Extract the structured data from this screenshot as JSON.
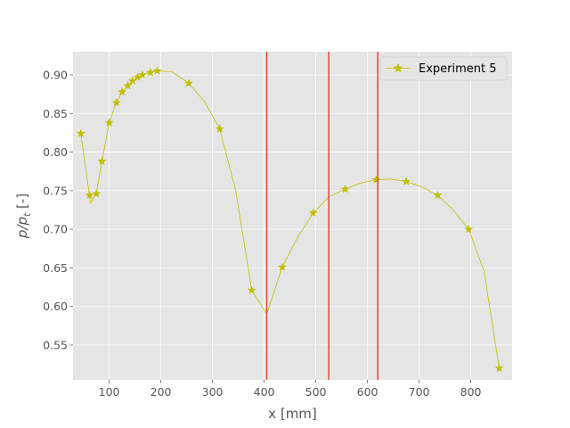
{
  "chart_data": {
    "type": "line",
    "xlabel": "x [mm]",
    "ylabel": "p/p",
    "ylabel_sub": "t",
    "ylabel_unit": " [-]",
    "xlim": [
      30,
      880
    ],
    "ylim": [
      0.505,
      0.93
    ],
    "xticks": [
      100,
      200,
      300,
      400,
      500,
      600,
      700,
      800
    ],
    "yticks": [
      0.55,
      0.6,
      0.65,
      0.7,
      0.75,
      0.8,
      0.85,
      0.9
    ],
    "grid": true,
    "legend_position": "top-right",
    "series": [
      {
        "name": "Experiment 5",
        "color": "#bfbf00",
        "marker": "star",
        "markers": [
          {
            "x": 45,
            "y": 0.824
          },
          {
            "x": 62,
            "y": 0.744
          },
          {
            "x": 75,
            "y": 0.746
          },
          {
            "x": 86,
            "y": 0.788
          },
          {
            "x": 100,
            "y": 0.838
          },
          {
            "x": 114,
            "y": 0.864
          },
          {
            "x": 125,
            "y": 0.878
          },
          {
            "x": 136,
            "y": 0.886
          },
          {
            "x": 145,
            "y": 0.892
          },
          {
            "x": 155,
            "y": 0.897
          },
          {
            "x": 164,
            "y": 0.9
          },
          {
            "x": 180,
            "y": 0.903
          },
          {
            "x": 193,
            "y": 0.905
          },
          {
            "x": 254,
            "y": 0.889
          },
          {
            "x": 314,
            "y": 0.83
          },
          {
            "x": 376,
            "y": 0.621
          },
          {
            "x": 435,
            "y": 0.651
          },
          {
            "x": 495,
            "y": 0.721
          },
          {
            "x": 557,
            "y": 0.752
          },
          {
            "x": 617,
            "y": 0.764
          },
          {
            "x": 675,
            "y": 0.762
          },
          {
            "x": 736,
            "y": 0.744
          },
          {
            "x": 796,
            "y": 0.7
          },
          {
            "x": 855,
            "y": 0.52
          }
        ],
        "line": [
          {
            "x": 45,
            "y": 0.824
          },
          {
            "x": 64,
            "y": 0.734
          },
          {
            "x": 75,
            "y": 0.746
          },
          {
            "x": 86,
            "y": 0.788
          },
          {
            "x": 100,
            "y": 0.838
          },
          {
            "x": 114,
            "y": 0.864
          },
          {
            "x": 125,
            "y": 0.878
          },
          {
            "x": 136,
            "y": 0.886
          },
          {
            "x": 145,
            "y": 0.892
          },
          {
            "x": 155,
            "y": 0.897
          },
          {
            "x": 164,
            "y": 0.9
          },
          {
            "x": 180,
            "y": 0.903
          },
          {
            "x": 193,
            "y": 0.905
          },
          {
            "x": 222,
            "y": 0.904
          },
          {
            "x": 254,
            "y": 0.889
          },
          {
            "x": 284,
            "y": 0.866
          },
          {
            "x": 314,
            "y": 0.83
          },
          {
            "x": 345,
            "y": 0.75
          },
          {
            "x": 376,
            "y": 0.621
          },
          {
            "x": 405,
            "y": 0.59
          },
          {
            "x": 435,
            "y": 0.651
          },
          {
            "x": 465,
            "y": 0.69
          },
          {
            "x": 495,
            "y": 0.721
          },
          {
            "x": 525,
            "y": 0.742
          },
          {
            "x": 557,
            "y": 0.752
          },
          {
            "x": 587,
            "y": 0.76
          },
          {
            "x": 617,
            "y": 0.764
          },
          {
            "x": 645,
            "y": 0.765
          },
          {
            "x": 675,
            "y": 0.762
          },
          {
            "x": 705,
            "y": 0.755
          },
          {
            "x": 736,
            "y": 0.744
          },
          {
            "x": 766,
            "y": 0.725
          },
          {
            "x": 796,
            "y": 0.7
          },
          {
            "x": 826,
            "y": 0.645
          },
          {
            "x": 855,
            "y": 0.52
          }
        ]
      }
    ],
    "vlines": [
      {
        "x": 405,
        "color": "#e24a33"
      },
      {
        "x": 525,
        "color": "#e24a33"
      },
      {
        "x": 620,
        "color": "#e24a33"
      }
    ],
    "colors": {
      "background": "#e5e5e5",
      "grid": "#ffffff",
      "tick_text": "#555555"
    }
  }
}
